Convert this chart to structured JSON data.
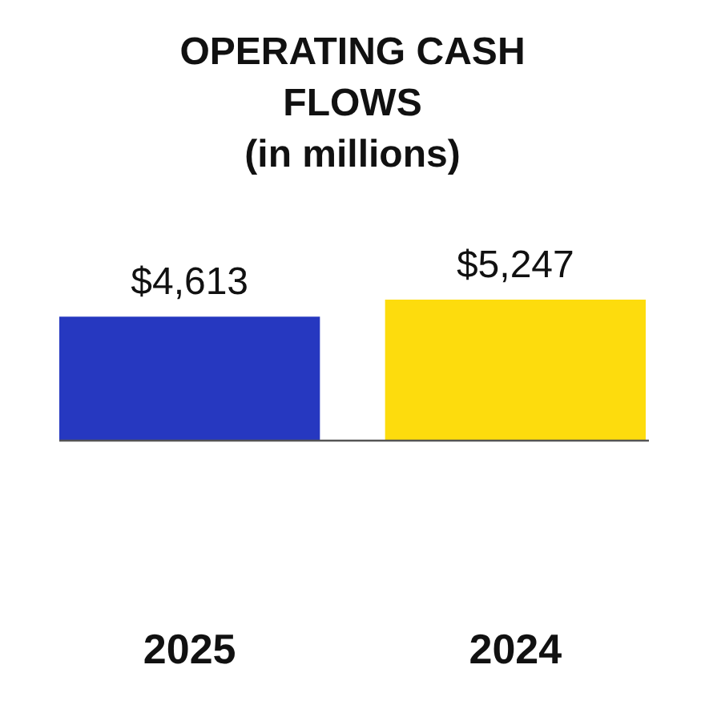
{
  "chart_data": {
    "type": "bar",
    "title": "OPERATING CASH FLOWS",
    "subtitle": "(in millions)",
    "categories": [
      "2025",
      "2024"
    ],
    "values": [
      4613,
      5247
    ],
    "colors": [
      "#2638c0",
      "#fddc0d"
    ],
    "value_labels": [
      "$4,613",
      "$5,247"
    ]
  }
}
